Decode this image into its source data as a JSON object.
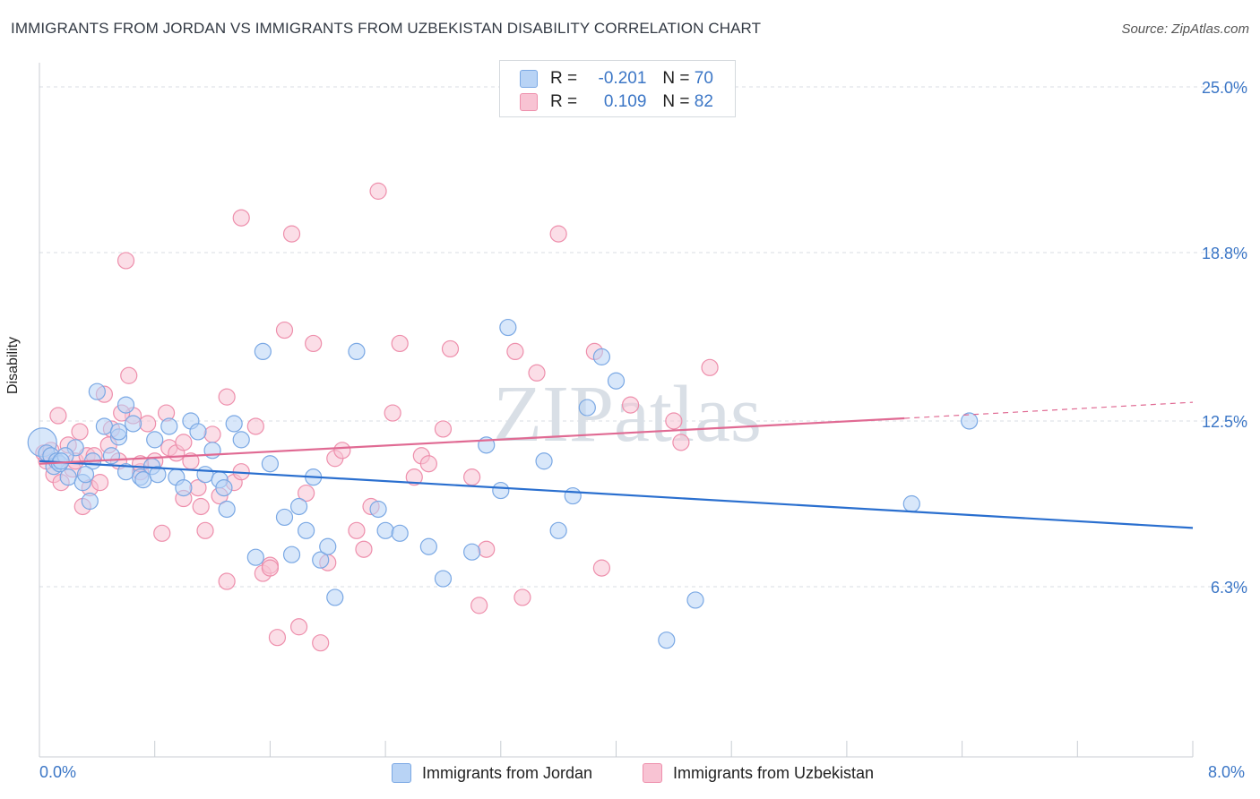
{
  "title": "IMMIGRANTS FROM JORDAN VS IMMIGRANTS FROM UZBEKISTAN DISABILITY CORRELATION CHART",
  "source": "Source: ZipAtlas.com",
  "watermark": "ZIPatlas",
  "legend_top": {
    "rows": [
      {
        "r_label": "R =",
        "r_value": "-0.201",
        "n_label": "N =",
        "n_value": "70"
      },
      {
        "r_label": "R =",
        "r_value": "0.109",
        "n_label": "N =",
        "n_value": "82"
      }
    ]
  },
  "legend_bottom": {
    "blue": "Immigrants from Jordan",
    "pink": "Immigrants from Uzbekistan"
  },
  "colors": {
    "blue_fill": "#b8d3f5",
    "blue_stroke": "#7aa8e4",
    "blue_line": "#2a6fcf",
    "pink_fill": "#f8c3d3",
    "pink_stroke": "#ee8fac",
    "pink_line": "#e06a93",
    "axis_text": "#3b76c6",
    "grid": "#d8dde3"
  },
  "chart_data": {
    "type": "scatter",
    "title": "IMMIGRANTS FROM JORDAN VS IMMIGRANTS FROM UZBEKISTAN DISABILITY CORRELATION CHART",
    "xlabel": "",
    "ylabel": "Disability",
    "xlim": [
      0,
      8
    ],
    "ylim": [
      0,
      26
    ],
    "x_tick_labels": [
      "0.0%",
      "8.0%"
    ],
    "y_ticks": [
      6.3,
      12.5,
      18.8,
      25.0
    ],
    "y_tick_labels": [
      "6.3%",
      "12.5%",
      "18.8%",
      "25.0%"
    ],
    "grid": "horizontal dashed",
    "series": [
      {
        "name": "Immigrants from Jordan",
        "color": "#7aa8e4",
        "points": [
          [
            0.02,
            11.7
          ],
          [
            0.05,
            11.3
          ],
          [
            0.08,
            11.2
          ],
          [
            0.1,
            10.8
          ],
          [
            0.12,
            11.0
          ],
          [
            0.14,
            10.9
          ],
          [
            0.2,
            10.4
          ],
          [
            0.25,
            11.5
          ],
          [
            0.3,
            10.2
          ],
          [
            0.35,
            9.5
          ],
          [
            0.37,
            11.0
          ],
          [
            0.4,
            13.6
          ],
          [
            0.45,
            12.3
          ],
          [
            0.5,
            11.2
          ],
          [
            0.55,
            11.9
          ],
          [
            0.6,
            10.6
          ],
          [
            0.65,
            12.4
          ],
          [
            0.7,
            10.4
          ],
          [
            0.72,
            10.3
          ],
          [
            0.78,
            10.8
          ],
          [
            0.8,
            11.8
          ],
          [
            0.82,
            10.5
          ],
          [
            0.9,
            12.3
          ],
          [
            0.95,
            10.4
          ],
          [
            1.0,
            10.0
          ],
          [
            1.05,
            12.5
          ],
          [
            1.1,
            12.1
          ],
          [
            1.15,
            10.5
          ],
          [
            1.2,
            11.4
          ],
          [
            1.25,
            10.3
          ],
          [
            1.28,
            10.0
          ],
          [
            1.35,
            12.4
          ],
          [
            1.4,
            11.8
          ],
          [
            1.5,
            7.4
          ],
          [
            1.55,
            15.1
          ],
          [
            1.6,
            10.9
          ],
          [
            1.7,
            8.9
          ],
          [
            1.75,
            7.5
          ],
          [
            1.8,
            9.3
          ],
          [
            1.85,
            8.4
          ],
          [
            1.9,
            10.4
          ],
          [
            1.95,
            7.3
          ],
          [
            2.0,
            7.8
          ],
          [
            2.05,
            5.9
          ],
          [
            2.2,
            15.1
          ],
          [
            2.35,
            9.2
          ],
          [
            2.4,
            8.4
          ],
          [
            2.5,
            8.3
          ],
          [
            2.7,
            7.8
          ],
          [
            2.8,
            6.6
          ],
          [
            3.0,
            7.6
          ],
          [
            3.1,
            11.6
          ],
          [
            3.2,
            9.9
          ],
          [
            3.25,
            16.0
          ],
          [
            3.5,
            11.0
          ],
          [
            3.6,
            8.4
          ],
          [
            3.7,
            9.7
          ],
          [
            3.8,
            13.0
          ],
          [
            3.9,
            14.9
          ],
          [
            4.0,
            14.0
          ],
          [
            4.35,
            4.3
          ],
          [
            4.55,
            5.8
          ],
          [
            6.05,
            9.4
          ],
          [
            6.45,
            12.5
          ],
          [
            0.55,
            12.1
          ],
          [
            0.6,
            13.1
          ],
          [
            1.3,
            9.2
          ],
          [
            0.32,
            10.5
          ],
          [
            0.18,
            11.2
          ],
          [
            0.15,
            11.0
          ]
        ]
      },
      {
        "name": "Immigrants from Uzbekistan",
        "color": "#ee8fac",
        "points": [
          [
            0.03,
            11.3
          ],
          [
            0.05,
            11.0
          ],
          [
            0.08,
            11.4
          ],
          [
            0.1,
            10.5
          ],
          [
            0.13,
            12.7
          ],
          [
            0.15,
            10.2
          ],
          [
            0.2,
            11.6
          ],
          [
            0.23,
            10.7
          ],
          [
            0.25,
            11.0
          ],
          [
            0.28,
            12.1
          ],
          [
            0.3,
            9.3
          ],
          [
            0.33,
            11.2
          ],
          [
            0.35,
            10.0
          ],
          [
            0.38,
            11.2
          ],
          [
            0.42,
            10.2
          ],
          [
            0.45,
            13.5
          ],
          [
            0.5,
            12.2
          ],
          [
            0.55,
            11.0
          ],
          [
            0.6,
            18.5
          ],
          [
            0.62,
            14.2
          ],
          [
            0.65,
            12.7
          ],
          [
            0.7,
            10.6
          ],
          [
            0.75,
            12.4
          ],
          [
            0.8,
            11.0
          ],
          [
            0.85,
            8.3
          ],
          [
            0.88,
            12.8
          ],
          [
            0.9,
            11.5
          ],
          [
            0.95,
            11.3
          ],
          [
            1.0,
            11.7
          ],
          [
            1.05,
            11.0
          ],
          [
            1.1,
            10.0
          ],
          [
            1.15,
            8.4
          ],
          [
            1.2,
            12.0
          ],
          [
            1.25,
            9.7
          ],
          [
            1.3,
            13.4
          ],
          [
            1.35,
            10.2
          ],
          [
            1.4,
            10.6
          ],
          [
            1.5,
            12.3
          ],
          [
            1.55,
            6.8
          ],
          [
            1.6,
            7.1
          ],
          [
            1.65,
            4.4
          ],
          [
            1.7,
            15.9
          ],
          [
            1.75,
            19.5
          ],
          [
            1.8,
            4.8
          ],
          [
            1.85,
            9.8
          ],
          [
            1.9,
            15.4
          ],
          [
            1.95,
            4.2
          ],
          [
            2.0,
            7.2
          ],
          [
            2.05,
            11.1
          ],
          [
            2.1,
            11.4
          ],
          [
            2.2,
            8.4
          ],
          [
            2.25,
            7.7
          ],
          [
            2.35,
            21.1
          ],
          [
            2.45,
            12.8
          ],
          [
            2.5,
            15.4
          ],
          [
            2.6,
            10.4
          ],
          [
            2.65,
            11.2
          ],
          [
            2.7,
            10.9
          ],
          [
            2.8,
            12.2
          ],
          [
            2.85,
            15.2
          ],
          [
            3.0,
            10.4
          ],
          [
            3.05,
            5.6
          ],
          [
            3.1,
            7.7
          ],
          [
            3.3,
            15.1
          ],
          [
            3.35,
            5.9
          ],
          [
            3.45,
            14.3
          ],
          [
            3.6,
            19.5
          ],
          [
            3.85,
            15.1
          ],
          [
            3.9,
            7.0
          ],
          [
            4.1,
            13.1
          ],
          [
            4.4,
            12.5
          ],
          [
            4.45,
            11.7
          ],
          [
            4.65,
            14.5
          ],
          [
            1.4,
            20.1
          ],
          [
            1.3,
            6.5
          ],
          [
            1.0,
            9.6
          ],
          [
            0.7,
            10.9
          ],
          [
            1.12,
            9.3
          ],
          [
            0.48,
            11.6
          ],
          [
            0.57,
            12.8
          ],
          [
            1.6,
            7.0
          ],
          [
            2.3,
            9.3
          ]
        ]
      }
    ],
    "trend_lines": [
      {
        "series": "Immigrants from Jordan",
        "x": [
          0.0,
          8.0
        ],
        "y": [
          11.0,
          8.5
        ]
      },
      {
        "series": "Immigrants from Uzbekistan",
        "x": [
          0.0,
          6.0
        ],
        "y": [
          10.9,
          12.6
        ],
        "dashed_extension": {
          "x": [
            6.0,
            8.0
          ],
          "y": [
            12.6,
            13.2
          ]
        }
      }
    ]
  }
}
